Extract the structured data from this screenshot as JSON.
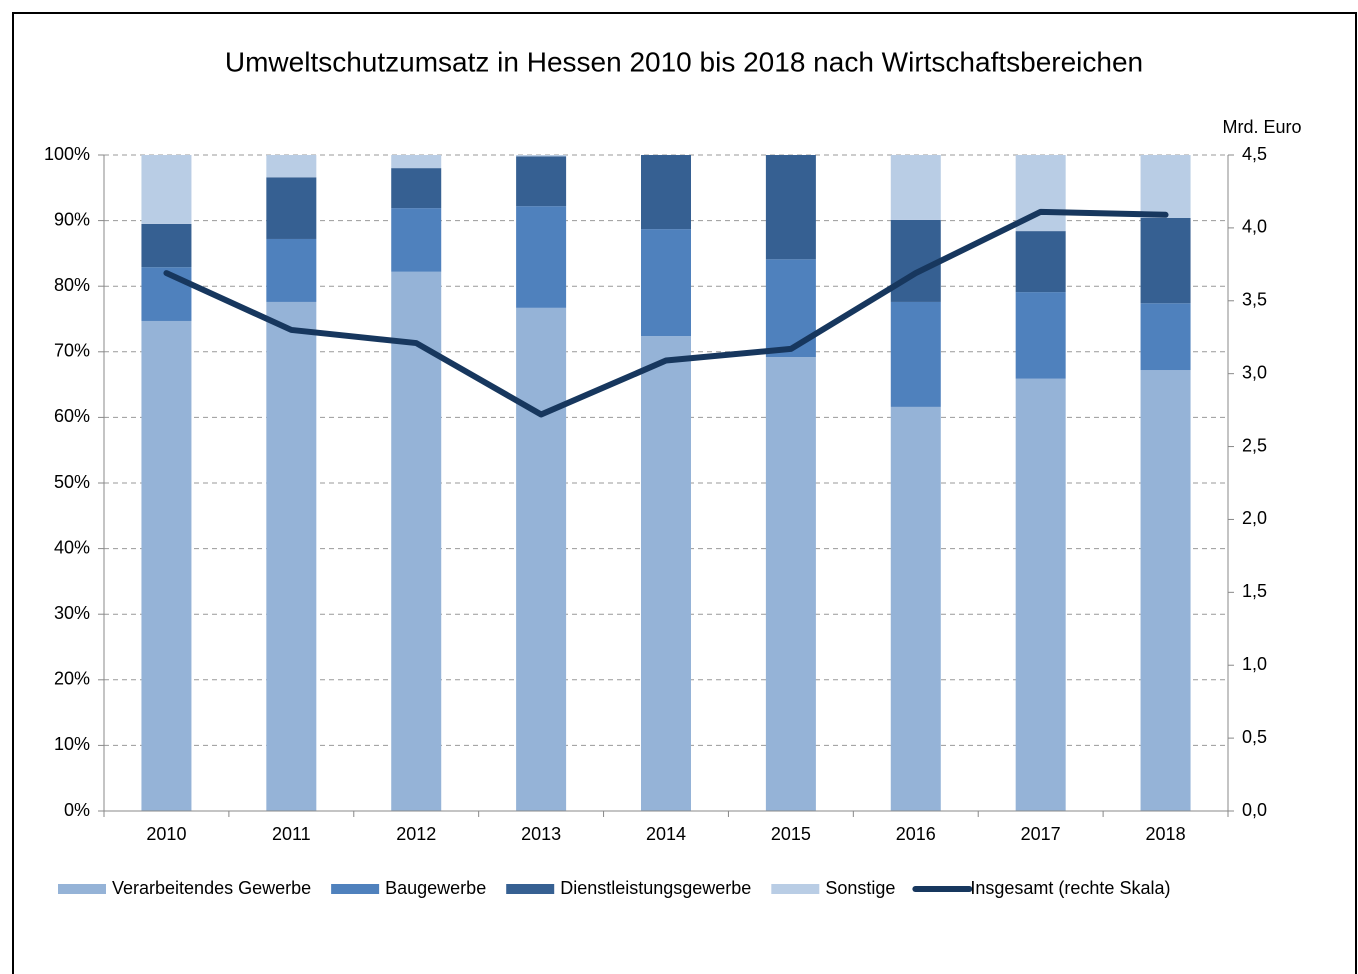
{
  "chart_data": {
    "type": "bar",
    "stacked": true,
    "title": "Umweltschutzumsatz in Hessen 2010 bis 2018 nach Wirtschaftsbereichen",
    "y2_label": "Mrd. Euro",
    "categories": [
      "2010",
      "2011",
      "2012",
      "2013",
      "2014",
      "2015",
      "2016",
      "2017",
      "2018"
    ],
    "series": [
      {
        "name": "Verarbeitendes Gewerbe",
        "color": "#95b3d7",
        "values": [
          74.7,
          77.6,
          82.2,
          76.7,
          72.4,
          69.2,
          61.6,
          65.9,
          67.2
        ]
      },
      {
        "name": "Baugewerbe",
        "color": "#4f81bd",
        "values": [
          8.2,
          9.6,
          9.7,
          15.5,
          16.3,
          14.9,
          16.0,
          13.2,
          10.2
        ]
      },
      {
        "name": "Dienstleistungsgewerbe",
        "color": "#366092",
        "values": [
          6.6,
          9.4,
          6.1,
          7.6,
          11.3,
          15.9,
          12.5,
          9.3,
          13.0
        ]
      },
      {
        "name": "Sonstige",
        "color": "#b9cde5",
        "values": [
          10.5,
          3.4,
          2.0,
          0.2,
          0,
          0,
          9.9,
          11.6,
          9.6
        ]
      },
      {
        "name": "Insgesamt (rechte Skala)",
        "color": "#17375e",
        "type": "line",
        "axis": "y2",
        "values": [
          3.69,
          3.3,
          3.21,
          2.72,
          3.09,
          3.17,
          3.69,
          4.11,
          4.09
        ]
      }
    ],
    "ylim": [
      0,
      100
    ],
    "yticks": [
      {
        "value": 0,
        "label": "0%"
      },
      {
        "value": 10,
        "label": "10%"
      },
      {
        "value": 20,
        "label": "20%"
      },
      {
        "value": 30,
        "label": "30%"
      },
      {
        "value": 40,
        "label": "40%"
      },
      {
        "value": 50,
        "label": "50%"
      },
      {
        "value": 60,
        "label": "60%"
      },
      {
        "value": 70,
        "label": "70%"
      },
      {
        "value": 80,
        "label": "80%"
      },
      {
        "value": 90,
        "label": "90%"
      },
      {
        "value": 100,
        "label": "100%"
      }
    ],
    "y2lim": [
      0,
      4.5
    ],
    "y2ticks": [
      {
        "value": 0,
        "label": "0,0"
      },
      {
        "value": 0.5,
        "label": "0,5"
      },
      {
        "value": 1,
        "label": "1,0"
      },
      {
        "value": 1.5,
        "label": "1,5"
      },
      {
        "value": 2,
        "label": "2,0"
      },
      {
        "value": 2.5,
        "label": "2,5"
      },
      {
        "value": 3,
        "label": "3,0"
      },
      {
        "value": 3.5,
        "label": "3,5"
      },
      {
        "value": 4,
        "label": "4,0"
      },
      {
        "value": 4.5,
        "label": "4,5"
      }
    ],
    "grid": true,
    "legend": "bottom"
  }
}
